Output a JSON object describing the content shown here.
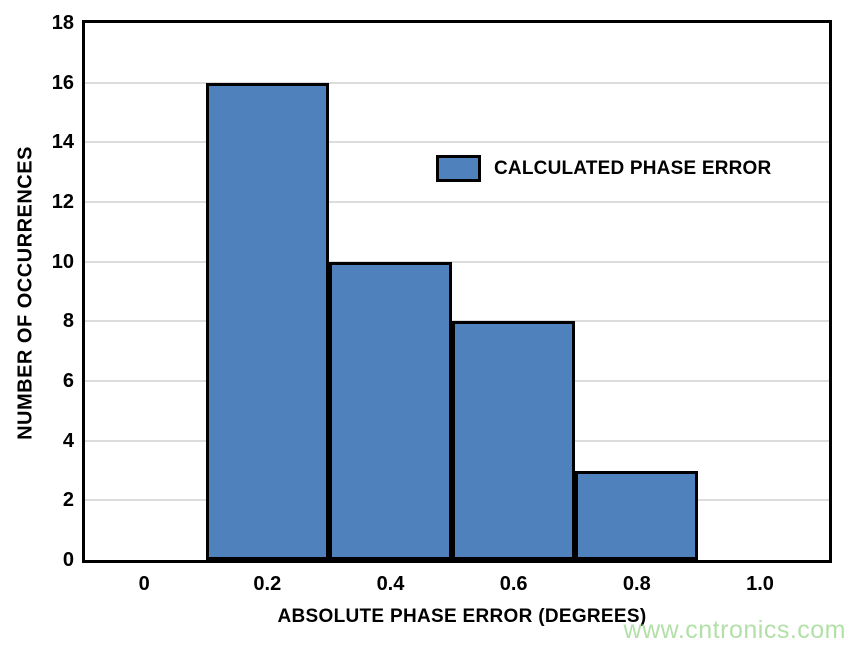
{
  "watermark": {
    "text": "www.cntronics.com",
    "color": "#b3e0a8"
  },
  "legend": {
    "label": "CALCULATED PHASE ERROR",
    "swatch_color": "#4f81bd"
  },
  "chart_data": {
    "type": "bar",
    "title": "",
    "xlabel": "ABSOLUTE PHASE ERROR (DEGREES)",
    "ylabel": "NUMBER OF OCCURRENCES",
    "bin_centers": [
      0.2,
      0.4,
      0.6,
      0.8
    ],
    "bin_width": 0.2,
    "series": [
      {
        "name": "CALCULATED PHASE ERROR",
        "values": [
          16,
          10,
          8,
          3
        ]
      }
    ],
    "xlim": [
      -0.096,
      1.112
    ],
    "ylim": [
      0,
      18
    ],
    "x_ticks": [
      0,
      0.2,
      0.4,
      0.6,
      0.8,
      1.0
    ],
    "x_tick_labels": [
      "0",
      "0.2",
      "0.4",
      "0.6",
      "0.8",
      "1.0"
    ],
    "y_ticks": [
      0,
      2,
      4,
      6,
      8,
      10,
      12,
      14,
      16,
      18
    ],
    "y_tick_labels": [
      "0",
      "2",
      "4",
      "6",
      "8",
      "10",
      "12",
      "14",
      "16",
      "18"
    ],
    "grid": "horizontal",
    "gridline_color": "#dcdcdc",
    "bar_color": "#4f81bd",
    "bar_border_color": "#000000",
    "frame_color": "#000000",
    "legend_position": "inside upper right-of-center"
  }
}
